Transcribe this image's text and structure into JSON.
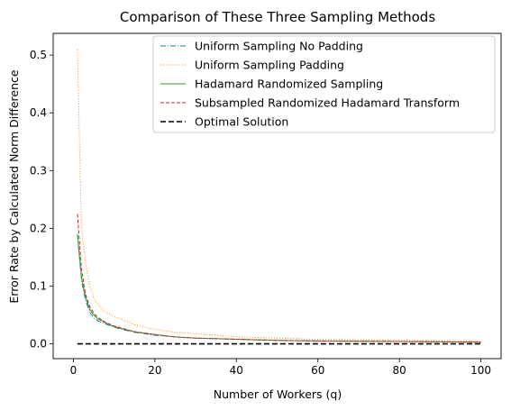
{
  "chart_data": {
    "type": "line",
    "title": "Comparison of These Three Sampling Methods",
    "xlabel": "Number of Workers (q)",
    "ylabel": "Error Rate by Calculated Norm Difference",
    "xlim": [
      -4.95,
      104.95
    ],
    "ylim": [
      -0.0256,
      0.5376
    ],
    "xticks": [
      0,
      20,
      40,
      60,
      80,
      100
    ],
    "yticks": [
      0.0,
      0.1,
      0.2,
      0.3,
      0.4,
      0.5
    ],
    "xtick_labels": [
      "0",
      "20",
      "40",
      "60",
      "80",
      "100"
    ],
    "ytick_labels": [
      "0.0",
      "0.1",
      "0.2",
      "0.3",
      "0.4",
      "0.5"
    ],
    "grid": false,
    "legend_position": "upper-right",
    "series": [
      {
        "name": "Uniform Sampling No Padding",
        "color": "#1f77b4",
        "dash": "dashdot",
        "x": [
          1,
          2,
          3,
          4,
          5,
          6,
          7,
          8,
          10,
          12,
          15,
          20,
          25,
          30,
          40,
          50,
          60,
          80,
          100
        ],
        "y": [
          0.19,
          0.11,
          0.075,
          0.055,
          0.045,
          0.04,
          0.037,
          0.034,
          0.029,
          0.025,
          0.02,
          0.015,
          0.012,
          0.01,
          0.008,
          0.006,
          0.005,
          0.004,
          0.003
        ]
      },
      {
        "name": "Uniform Sampling Padding",
        "color": "#ff7f0e",
        "dash": "dotted",
        "x": [
          1,
          2,
          3,
          4,
          5,
          6,
          7,
          8,
          10,
          12,
          15,
          20,
          25,
          30,
          35,
          40,
          50,
          60,
          80,
          100
        ],
        "y": [
          0.51,
          0.2,
          0.14,
          0.1,
          0.08,
          0.068,
          0.06,
          0.055,
          0.047,
          0.042,
          0.033,
          0.025,
          0.02,
          0.018,
          0.015,
          0.012,
          0.01,
          0.008,
          0.006,
          0.005
        ]
      },
      {
        "name": "Hadamard Randomized Sampling",
        "color": "#2ca02c",
        "dash": "solid",
        "x": [
          1,
          2,
          3,
          4,
          5,
          6,
          7,
          8,
          10,
          12,
          15,
          20,
          25,
          30,
          40,
          50,
          60,
          80,
          100
        ],
        "y": [
          0.19,
          0.115,
          0.08,
          0.06,
          0.05,
          0.043,
          0.04,
          0.036,
          0.03,
          0.026,
          0.021,
          0.016,
          0.012,
          0.01,
          0.008,
          0.006,
          0.005,
          0.004,
          0.003
        ]
      },
      {
        "name": "Subsampled Randomized Hadamard Transform",
        "color": "#d62728",
        "dash": "dashed",
        "x": [
          1,
          2,
          3,
          4,
          5,
          6,
          7,
          8,
          10,
          12,
          15,
          20,
          25,
          30,
          40,
          50,
          60,
          80,
          100
        ],
        "y": [
          0.225,
          0.13,
          0.085,
          0.065,
          0.053,
          0.046,
          0.041,
          0.037,
          0.031,
          0.027,
          0.021,
          0.016,
          0.012,
          0.01,
          0.008,
          0.006,
          0.005,
          0.004,
          0.003
        ]
      },
      {
        "name": "Optimal Solution",
        "color": "#000000",
        "dash": "dashed-black",
        "x": [
          1,
          100
        ],
        "y": [
          0.0,
          0.0
        ]
      }
    ]
  }
}
